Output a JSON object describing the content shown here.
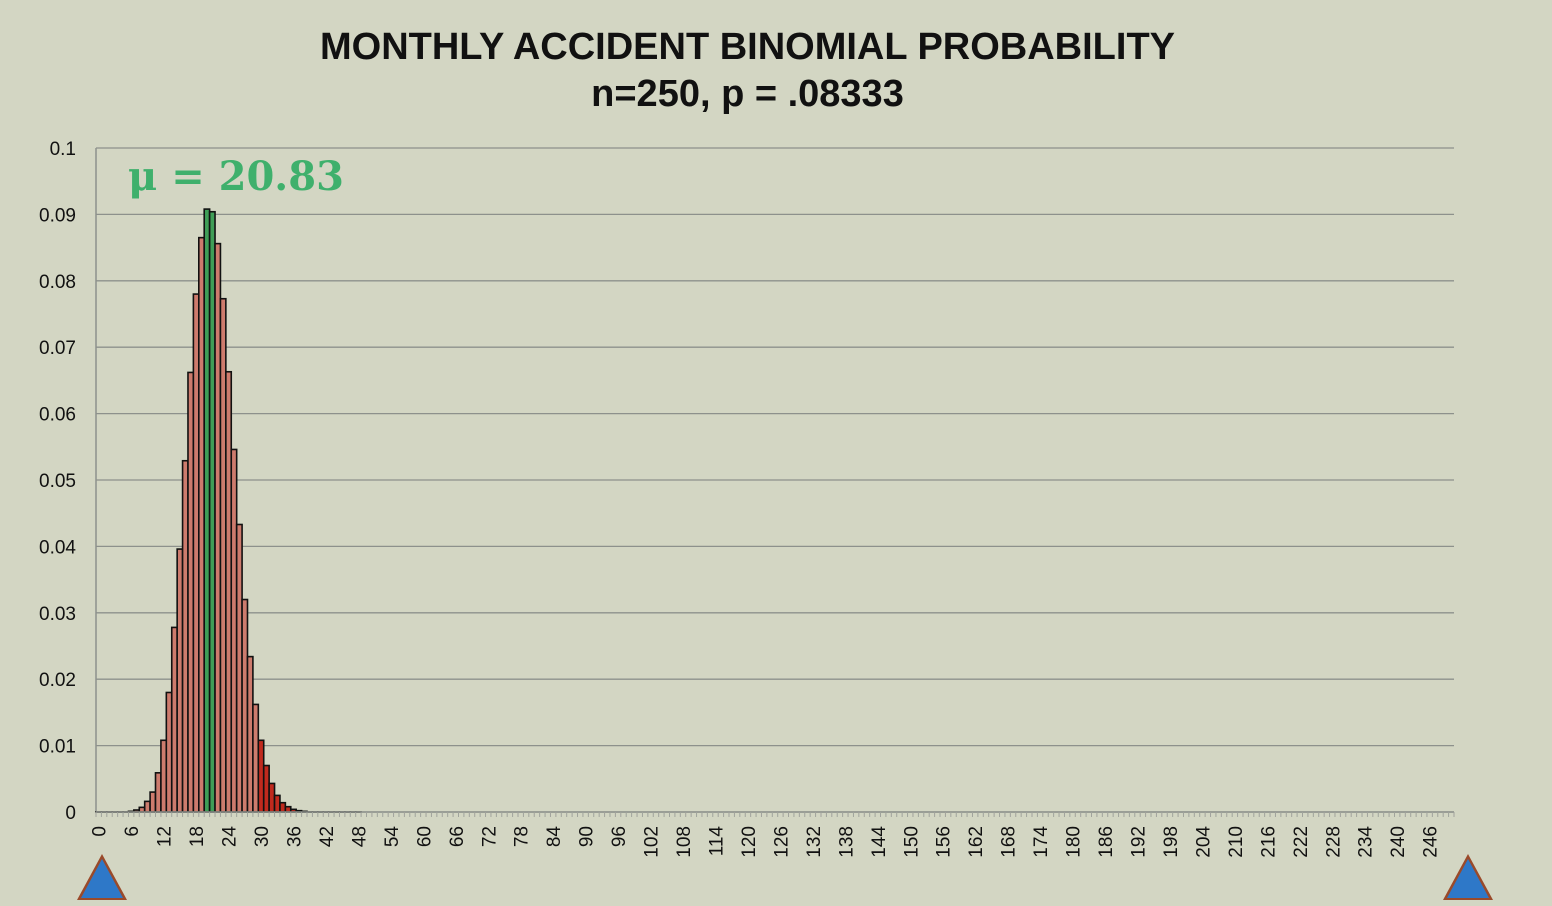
{
  "chart_data": {
    "type": "bar",
    "title": "MONTHLY ACCIDENT BINOMIAL PROBABILITY",
    "subtitle": "n=250, p = .08333",
    "annotation": "μ = 20.83",
    "xlabel": "",
    "ylabel": "",
    "x": [
      0,
      250
    ],
    "x_tick_step": 6,
    "ylim": [
      0,
      0.1
    ],
    "y_ticks": [
      "0",
      "0.01",
      "0.02",
      "0.03",
      "0.04",
      "0.05",
      "0.06",
      "0.07",
      "0.08",
      "0.09",
      "0.1"
    ],
    "grid": true,
    "bar_values": [
      0.0,
      0.0,
      0.0,
      0.0,
      0.0,
      0.0,
      0.0001,
      0.0003,
      0.0007,
      0.0016,
      0.003,
      0.0059,
      0.0108,
      0.018,
      0.0278,
      0.0396,
      0.0529,
      0.0662,
      0.078,
      0.0865,
      0.0908,
      0.0904,
      0.0856,
      0.0773,
      0.0663,
      0.0546,
      0.0433,
      0.032,
      0.0234,
      0.0162,
      0.0108,
      0.007,
      0.0043,
      0.0025,
      0.0014,
      0.0008,
      0.0004,
      0.0002,
      0.0001,
      0.0,
      0.0,
      0.0,
      0.0,
      0.0,
      0.0,
      0.0,
      0.0,
      0.0,
      0.0
    ],
    "highlight_categories": [
      20,
      21
    ],
    "bar_colors": {
      "default": "#cd7b6d",
      "highlight": "#3f9e57",
      "tail_start": 30,
      "tail": "#c02a1e"
    },
    "annotation_color": "#3fb06c"
  }
}
